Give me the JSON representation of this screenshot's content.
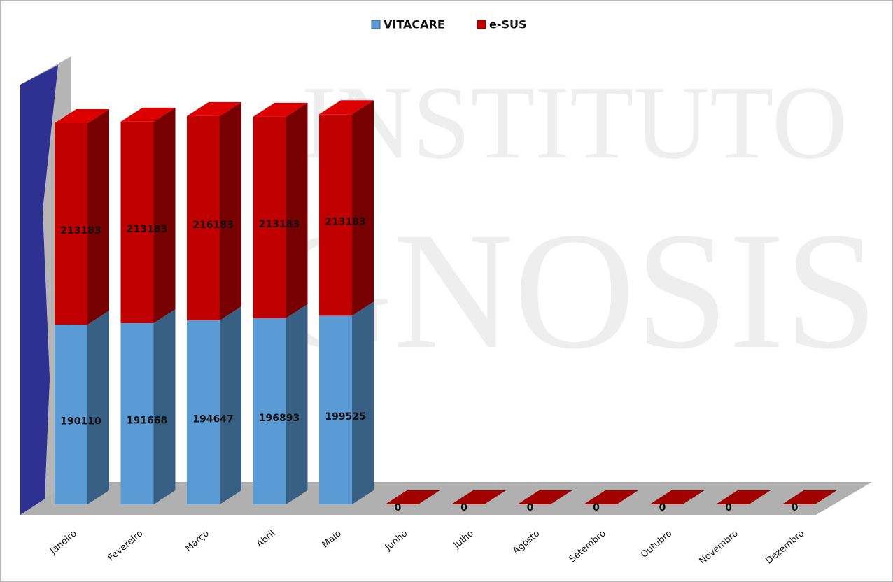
{
  "chart_data": {
    "type": "bar3d_stacked",
    "watermark": [
      "INSTITUTO",
      "GNOSIS"
    ],
    "categories": [
      "Janeiro",
      "Fevereiro",
      "Março",
      "Abril",
      "Maio",
      "Junho",
      "Julho",
      "Agosto",
      "Setembro",
      "Outubro",
      "Novembro",
      "Dezembro"
    ],
    "series": [
      {
        "name": "VITACARE",
        "color": "#5b9bd5",
        "values": [
          190110,
          191668,
          194647,
          196893,
          199525,
          0,
          0,
          0,
          0,
          0,
          0,
          0
        ]
      },
      {
        "name": "e-SUS",
        "color": "#c00000",
        "values": [
          213183,
          213183,
          216183,
          213183,
          213183,
          0,
          0,
          0,
          0,
          0,
          0,
          0
        ]
      }
    ],
    "legend": "top"
  }
}
